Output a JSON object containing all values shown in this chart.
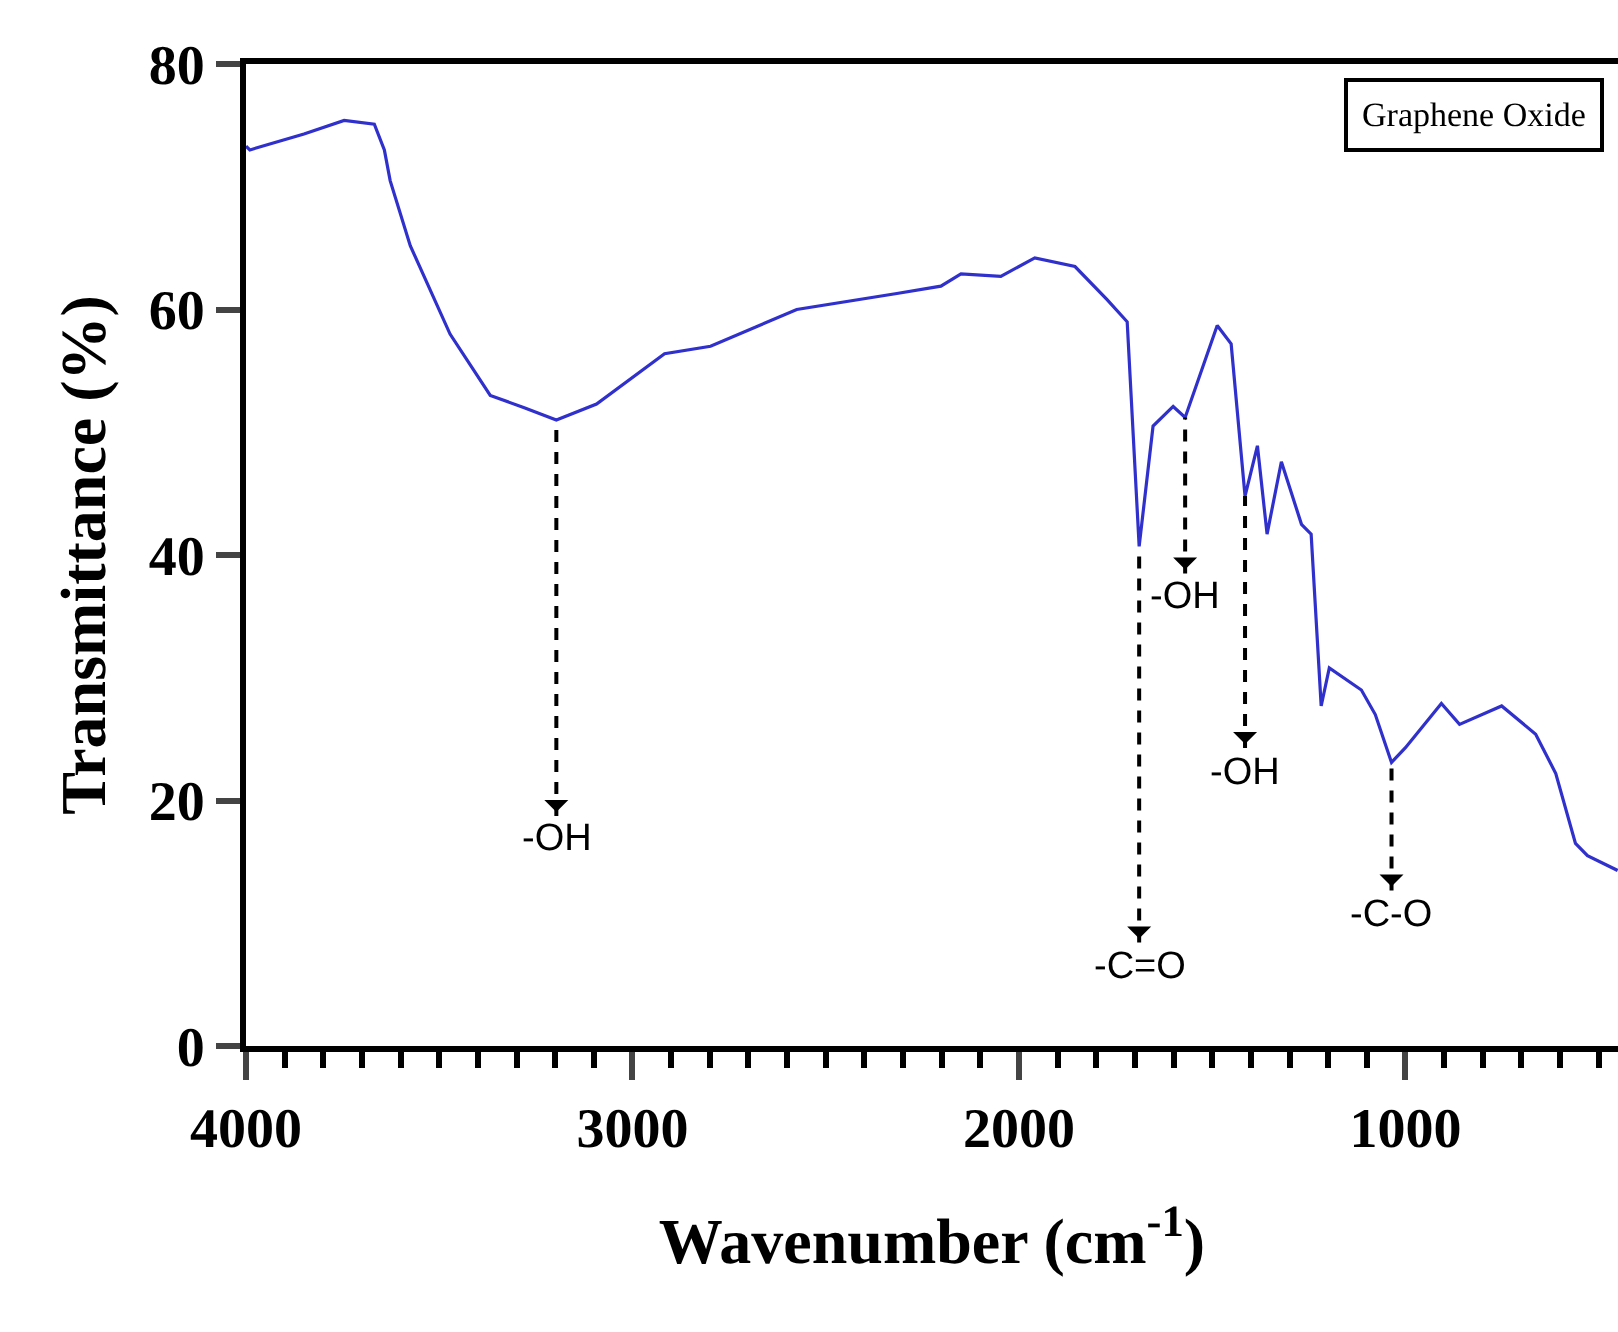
{
  "chart_data": {
    "type": "line",
    "xlabel": "Wavenumber (cm$^{-1}$)",
    "ylabel": "Transmittance (%)",
    "xlim": [
      4000,
      450
    ],
    "xticks": [
      4000,
      3000,
      2000,
      1000
    ],
    "ylim": [
      0,
      80
    ],
    "yticks": [
      0,
      20,
      40,
      60,
      80
    ],
    "grid": false,
    "marker": "none",
    "line_style": "solid",
    "series": [
      {
        "color": "#3030cc",
        "x": [
          4000,
          3990,
          3850,
          3746,
          3668,
          3642,
          3627,
          3575,
          3472,
          3368,
          3280,
          3197,
          3093,
          2917,
          2798,
          2575,
          2316,
          2202,
          2150,
          2047,
          1959,
          1855,
          1772,
          1720,
          1689,
          1653,
          1601,
          1570,
          1487,
          1451,
          1415,
          1383,
          1358,
          1321,
          1269,
          1244,
          1218,
          1197,
          1114,
          1078,
          1036,
          1000,
          907,
          860,
          751,
          663,
          611,
          560,
          529,
          451
        ],
        "values": [
          73.3,
          73.0,
          74.3,
          75.4,
          75.1,
          73.0,
          70.5,
          65.2,
          58.0,
          53.0,
          52.0,
          51.0,
          52.3,
          56.4,
          57.0,
          60.0,
          61.3,
          61.9,
          62.9,
          62.7,
          64.2,
          63.5,
          60.8,
          59.0,
          40.7,
          50.5,
          52.1,
          51.2,
          58.7,
          57.2,
          44.8,
          48.9,
          41.7,
          47.6,
          42.5,
          41.7,
          27.7,
          30.8,
          29.0,
          27.0,
          23.1,
          24.3,
          27.9,
          26.2,
          27.7,
          25.4,
          22.2,
          16.5,
          15.5,
          14.3
        ]
      }
    ],
    "annotations": [
      "Graphene Oxide",
      {
        "text": "-OH",
        "x": 3197,
        "y": 51.0
      },
      {
        "text": "-C=O",
        "x": 1689,
        "y": 40.7
      },
      {
        "text": "-OH",
        "x": 1570,
        "y": 51.2
      },
      {
        "text": "-OH",
        "x": 1415,
        "y": 44.8
      },
      {
        "text": "-C-O",
        "x": 1036,
        "y": 23.1
      }
    ]
  }
}
